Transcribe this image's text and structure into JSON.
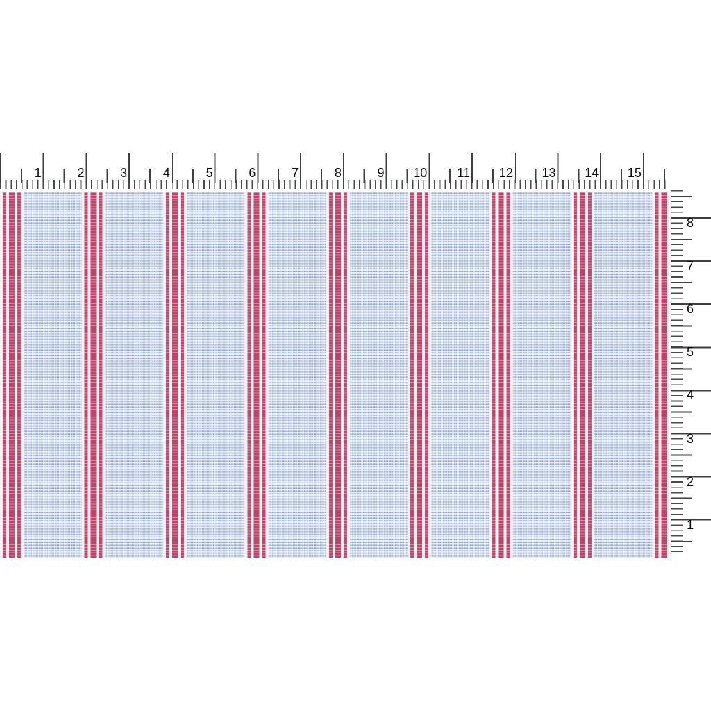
{
  "page": {
    "background": "#ffffff",
    "description": "Red and blue ticking-stripe woven fabric swatch photographed with inch rulers along the top and right edges"
  },
  "fabric": {
    "pattern": "wide chambray blue bands separated by groups of three red stripes (thin, wide, thin) on white",
    "colors": {
      "blue_thread": "#8ba3cc",
      "blue_light": "#e2e8f3",
      "blue_base": "#dfe6f1",
      "red_stripe": "#c1486e",
      "red_stripe_wide": "#bf436b",
      "white_stripe": "#f5eff1"
    },
    "visible_width_inches": "15.6",
    "visible_height_inches": "8.5"
  },
  "horizontal_ruler": {
    "unit": "inches",
    "tick_subdivision": "eighths",
    "labels": [
      "1",
      "2",
      "3",
      "4",
      "5",
      "6",
      "7",
      "8",
      "9",
      "10",
      "11",
      "12",
      "13",
      "14",
      "15"
    ]
  },
  "vertical_ruler": {
    "unit": "inches",
    "tick_subdivision": "eighths",
    "labels": [
      "8",
      "7",
      "6",
      "5",
      "4",
      "3",
      "2",
      "1"
    ]
  },
  "ruler_style": {
    "tick_color": "#3f3f3f",
    "number_color": "#0a0a0a"
  }
}
